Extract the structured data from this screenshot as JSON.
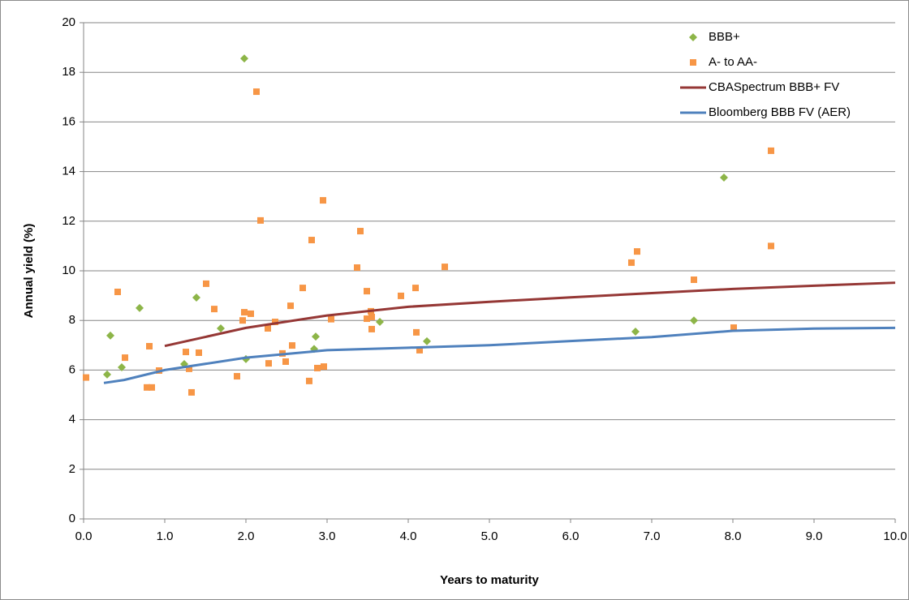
{
  "chart_data": {
    "type": "scatter",
    "x_label": "Years to maturity",
    "y_label": "Annual yield (%)",
    "xlim": [
      0,
      10
    ],
    "ylim": [
      0,
      20
    ],
    "xticks": [
      {
        "value": 0,
        "label": "0.0"
      },
      {
        "value": 1,
        "label": "1.0"
      },
      {
        "value": 2,
        "label": "2.0"
      },
      {
        "value": 3,
        "label": "3.0"
      },
      {
        "value": 4,
        "label": "4.0"
      },
      {
        "value": 5,
        "label": "5.0"
      },
      {
        "value": 6,
        "label": "6.0"
      },
      {
        "value": 7,
        "label": "7.0"
      },
      {
        "value": 8,
        "label": "8.0"
      },
      {
        "value": 9,
        "label": "9.0"
      },
      {
        "value": 10,
        "label": "10.0"
      }
    ],
    "yticks": [
      0,
      2,
      4,
      6,
      8,
      10,
      12,
      14,
      16,
      18,
      20
    ],
    "grid": true,
    "legend": "top-right",
    "series": [
      {
        "name": "BBB+",
        "color": "#8db548",
        "marker": "diamond",
        "x": [
          0.29,
          0.33,
          0.47,
          0.69,
          1.24,
          1.39,
          1.69,
          1.98,
          2.0,
          2.86,
          2.84,
          3.65,
          4.23,
          6.8,
          7.52,
          7.89
        ],
        "values": [
          5.82,
          7.39,
          6.11,
          8.5,
          6.24,
          8.92,
          7.68,
          18.56,
          6.44,
          7.35,
          6.85,
          7.94,
          7.16,
          7.55,
          8.0,
          13.76
        ]
      },
      {
        "name": "A- to AA-",
        "color": "#f79646",
        "marker": "square",
        "x": [
          0.03,
          0.42,
          0.51,
          0.78,
          0.81,
          0.84,
          0.93,
          1.26,
          1.3,
          1.33,
          1.42,
          1.51,
          1.61,
          1.89,
          1.96,
          1.98,
          2.06,
          2.13,
          2.18,
          2.27,
          2.28,
          2.36,
          2.45,
          2.49,
          2.55,
          2.57,
          2.7,
          2.78,
          2.81,
          2.88,
          2.95,
          2.96,
          3.05,
          3.37,
          3.41,
          3.49,
          3.49,
          3.54,
          3.55,
          3.55,
          3.91,
          4.09,
          4.1,
          4.14,
          4.45,
          6.75,
          6.82,
          7.52,
          8.01,
          8.47,
          8.47
        ],
        "values": [
          5.7,
          9.15,
          6.5,
          5.3,
          6.96,
          5.3,
          5.98,
          6.73,
          6.05,
          5.1,
          6.7,
          9.48,
          8.46,
          5.75,
          8.0,
          8.33,
          8.27,
          17.22,
          12.03,
          7.68,
          6.27,
          7.94,
          6.67,
          6.34,
          8.59,
          6.99,
          9.31,
          5.56,
          11.24,
          6.08,
          12.84,
          6.14,
          8.05,
          10.13,
          11.6,
          9.18,
          8.07,
          8.37,
          8.14,
          7.65,
          8.99,
          9.31,
          7.52,
          6.8,
          10.16,
          10.33,
          10.78,
          9.64,
          7.71,
          14.84,
          11.0
        ]
      },
      {
        "name": "CBASpectrum BBB+ FV",
        "color": "#953735",
        "marker": "line",
        "x": [
          1,
          2,
          3,
          4,
          5,
          6,
          7,
          8,
          9,
          10
        ],
        "values": [
          6.97,
          7.7,
          8.2,
          8.55,
          8.75,
          8.93,
          9.1,
          9.27,
          9.4,
          9.52
        ]
      },
      {
        "name": "Bloomberg BBB FV (AER)",
        "color": "#4f81bd",
        "marker": "line",
        "x": [
          0.25,
          0.5,
          1,
          2,
          3,
          4,
          5,
          6,
          7,
          8,
          9,
          10
        ],
        "values": [
          5.48,
          5.6,
          6.0,
          6.5,
          6.8,
          6.9,
          7.0,
          7.17,
          7.33,
          7.58,
          7.67,
          7.7
        ]
      }
    ]
  }
}
